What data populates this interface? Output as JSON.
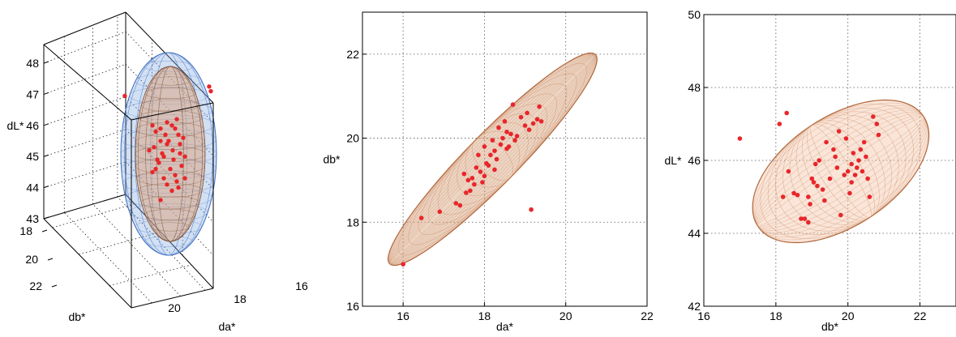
{
  "chart_data": [
    {
      "type": "scatter",
      "view": "3d",
      "xlabel": "da*",
      "ylabel": "db*",
      "zlabel": "dL*",
      "x_ticks": [
        16,
        18,
        20
      ],
      "y_ticks": [
        18,
        20,
        22
      ],
      "z_ticks": [
        43,
        44,
        45,
        46,
        47,
        48
      ],
      "zlim": [
        43,
        48.6
      ],
      "grid": true,
      "surfaces": [
        {
          "shape": "ellipsoid",
          "color": "#7ea7e0",
          "role": "outer"
        },
        {
          "shape": "ellipsoid",
          "color": "#d8a585",
          "role": "inner"
        }
      ],
      "points": [
        [
          45.7,
          -4
        ],
        [
          45.5,
          -10
        ],
        [
          45.2,
          5
        ],
        [
          44.9,
          -14
        ],
        [
          44.6,
          2
        ],
        [
          45.9,
          8
        ],
        [
          44.3,
          -6
        ],
        [
          44.0,
          12
        ],
        [
          46.1,
          -2
        ],
        [
          45.4,
          14
        ],
        [
          44.8,
          -12
        ],
        [
          45.0,
          20
        ],
        [
          44.5,
          -20
        ],
        [
          45.8,
          -16
        ],
        [
          44.2,
          10
        ],
        [
          46.0,
          4
        ],
        [
          45.6,
          18
        ],
        [
          45.1,
          -8
        ],
        [
          44.7,
          16
        ],
        [
          45.3,
          -18
        ],
        [
          44.1,
          -2
        ],
        [
          45.9,
          -10
        ],
        [
          44.4,
          8
        ],
        [
          45.2,
          -24
        ],
        [
          46.2,
          10
        ],
        [
          43.6,
          -10
        ],
        [
          46.0,
          -20
        ],
        [
          45.5,
          0
        ],
        [
          44.6,
          -16
        ],
        [
          45.7,
          12
        ],
        [
          44.9,
          6
        ],
        [
          45.4,
          -2
        ],
        [
          43.9,
          4
        ],
        [
          45.0,
          -6
        ],
        [
          44.3,
          20
        ],
        [
          45.1,
          14
        ]
      ],
      "outliers": [
        [
          46.95,
          -104
        ],
        [
          47.25,
          96
        ],
        [
          47.1,
          100
        ]
      ],
      "point_color": "#e8262a"
    },
    {
      "type": "scatter",
      "xlabel": "da*",
      "ylabel": "db*",
      "xlim": [
        15,
        22
      ],
      "ylim": [
        16,
        23
      ],
      "x_ticks": [
        16,
        18,
        20,
        22
      ],
      "y_ticks": [
        16,
        18,
        20,
        22
      ],
      "grid": true,
      "ellipse": {
        "center": [
          18.2,
          19.5
        ],
        "angle_deg": 44.5,
        "semi_major": 3.55,
        "semi_minor": 0.62,
        "color": "#d7a17c"
      },
      "points": [
        [
          16.0,
          17.0
        ],
        [
          16.45,
          18.1
        ],
        [
          16.9,
          18.25
        ],
        [
          17.3,
          18.45
        ],
        [
          17.5,
          19.15
        ],
        [
          17.55,
          18.7
        ],
        [
          17.6,
          19.0
        ],
        [
          17.7,
          19.05
        ],
        [
          17.75,
          18.9
        ],
        [
          17.8,
          19.3
        ],
        [
          17.85,
          19.6
        ],
        [
          17.9,
          19.2
        ],
        [
          17.95,
          18.95
        ],
        [
          18.0,
          19.8
        ],
        [
          18.05,
          19.4
        ],
        [
          18.1,
          19.35
        ],
        [
          18.15,
          19.6
        ],
        [
          18.2,
          19.95
        ],
        [
          18.25,
          19.7
        ],
        [
          18.3,
          19.5
        ],
        [
          18.35,
          20.25
        ],
        [
          18.4,
          19.85
        ],
        [
          18.45,
          20.0
        ],
        [
          18.5,
          20.4
        ],
        [
          18.55,
          19.75
        ],
        [
          18.6,
          19.8
        ],
        [
          18.65,
          20.1
        ],
        [
          18.7,
          20.8
        ],
        [
          18.75,
          19.95
        ],
        [
          18.8,
          20.05
        ],
        [
          18.9,
          20.5
        ],
        [
          19.0,
          20.3
        ],
        [
          19.05,
          20.6
        ],
        [
          19.1,
          20.2
        ],
        [
          19.2,
          20.35
        ],
        [
          19.3,
          20.45
        ],
        [
          19.35,
          20.75
        ],
        [
          19.4,
          20.4
        ],
        [
          19.15,
          18.3
        ],
        [
          17.4,
          18.4
        ],
        [
          17.65,
          18.75
        ],
        [
          18.0,
          19.1
        ],
        [
          18.55,
          20.15
        ],
        [
          18.25,
          19.25
        ]
      ],
      "point_color": "#e8262a"
    },
    {
      "type": "scatter",
      "xlabel": "db*",
      "ylabel": "dL*",
      "xlim": [
        16,
        23
      ],
      "ylim": [
        42,
        50
      ],
      "x_ticks": [
        16,
        18,
        20,
        22
      ],
      "y_ticks": [
        42,
        44,
        46,
        48,
        50
      ],
      "grid": true,
      "ellipse": {
        "center": [
          19.8,
          45.7
        ],
        "angle_deg": 33,
        "semi_major": 2.75,
        "semi_minor": 1.5,
        "color": "#f3c5a8"
      },
      "points": [
        [
          17.0,
          46.6
        ],
        [
          18.1,
          47.0
        ],
        [
          18.3,
          47.3
        ],
        [
          18.2,
          45.0
        ],
        [
          18.35,
          45.7
        ],
        [
          18.5,
          45.1
        ],
        [
          18.7,
          44.4
        ],
        [
          18.8,
          44.4
        ],
        [
          18.9,
          44.3
        ],
        [
          18.9,
          45.0
        ],
        [
          18.95,
          44.8
        ],
        [
          19.0,
          45.5
        ],
        [
          19.05,
          45.4
        ],
        [
          19.1,
          45.9
        ],
        [
          19.15,
          45.3
        ],
        [
          19.2,
          46.0
        ],
        [
          19.3,
          45.2
        ],
        [
          19.4,
          46.5
        ],
        [
          19.5,
          45.5
        ],
        [
          19.6,
          46.3
        ],
        [
          19.7,
          45.8
        ],
        [
          19.75,
          46.8
        ],
        [
          19.8,
          44.5
        ],
        [
          19.9,
          45.6
        ],
        [
          20.0,
          45.7
        ],
        [
          20.05,
          45.1
        ],
        [
          20.1,
          45.9
        ],
        [
          20.15,
          46.2
        ],
        [
          20.2,
          45.6
        ],
        [
          20.3,
          46.0
        ],
        [
          20.35,
          46.3
        ],
        [
          20.4,
          45.7
        ],
        [
          20.45,
          46.5
        ],
        [
          20.5,
          46.1
        ],
        [
          20.6,
          45.0
        ],
        [
          20.7,
          47.2
        ],
        [
          20.8,
          47.0
        ],
        [
          20.85,
          46.7
        ],
        [
          20.1,
          45.4
        ],
        [
          19.65,
          46.1
        ],
        [
          20.25,
          45.8
        ],
        [
          19.95,
          46.6
        ],
        [
          20.55,
          45.5
        ],
        [
          19.35,
          44.9
        ],
        [
          18.6,
          45.05
        ]
      ],
      "point_color": "#e8262a"
    }
  ]
}
